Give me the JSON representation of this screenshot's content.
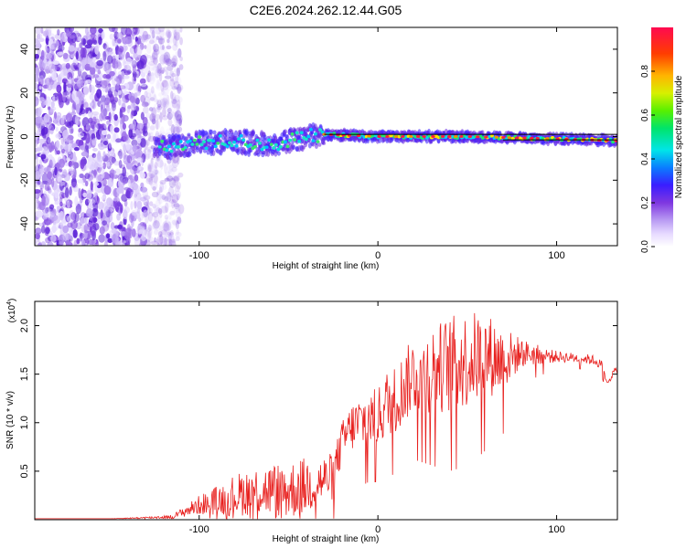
{
  "title": "C2E6.2024.262.12.44.G05",
  "colors": {
    "snr_line": "#e8211f",
    "frame": "#000000"
  },
  "colorbar": {
    "label": "Normalized spectral amplitude",
    "ticks": [
      "0.0",
      "0.2",
      "0.4",
      "0.6",
      "0.8"
    ],
    "tick_values": [
      0.0,
      0.2,
      0.4,
      0.6,
      0.8
    ],
    "range": [
      0.0,
      1.0
    ]
  },
  "chart_data": [
    {
      "type": "heatmap",
      "xlabel": "Height of straight line (km)",
      "ylabel": "Frequency (Hz)",
      "xlim": [
        -192,
        134
      ],
      "ylim": [
        -50,
        50
      ],
      "xticks": [
        -100,
        0,
        100
      ],
      "xtick_labels": [
        "-100",
        "0",
        "100"
      ],
      "yticks": [
        40,
        20,
        0,
        -20,
        -40
      ],
      "ytick_labels": [
        "40",
        "20",
        "0",
        "-20",
        "-40"
      ],
      "description_points": {
        "noise_region_end_km": -115,
        "ridge": [
          [
            -120,
            -5
          ],
          [
            -100,
            -3
          ],
          [
            -80,
            -2
          ],
          [
            -60,
            -4
          ],
          [
            -40,
            0
          ],
          [
            -30,
            1
          ],
          [
            0,
            0
          ],
          [
            50,
            0
          ],
          [
            100,
            -1
          ],
          [
            134,
            -2
          ]
        ]
      }
    },
    {
      "type": "line",
      "xlabel": "Height of straight line (km)",
      "ylabel": "SNR (10 * v/v)",
      "scale_label": "(x10",
      "scale_exp": "4",
      "scale_close": ")",
      "xlim": [
        -192,
        134
      ],
      "ylim": [
        0,
        2.25
      ],
      "xticks": [
        -100,
        0,
        100
      ],
      "xtick_labels": [
        "-100",
        "0",
        "100"
      ],
      "yticks": [
        0.5,
        1.0,
        1.5,
        2.0
      ],
      "ytick_labels": [
        "0.5",
        "1.0",
        "1.5",
        "2.0"
      ],
      "series": [
        {
          "name": "SNR",
          "x": [
            -192,
            -170,
            -150,
            -130,
            -115,
            -100,
            -90,
            -80,
            -70,
            -60,
            -50,
            -40,
            -32,
            -25,
            -20,
            -15,
            -10,
            -5,
            0,
            5,
            10,
            20,
            30,
            40,
            50,
            60,
            70,
            80,
            90,
            100,
            110,
            120,
            125,
            128,
            131,
            134
          ],
          "y": [
            0.01,
            0.01,
            0.01,
            0.02,
            0.03,
            0.15,
            0.2,
            0.25,
            0.3,
            0.3,
            0.3,
            0.35,
            0.4,
            0.45,
            0.8,
            0.95,
            1.0,
            1.05,
            1.05,
            1.2,
            1.25,
            1.5,
            1.55,
            1.6,
            1.65,
            1.7,
            1.65,
            1.72,
            1.7,
            1.68,
            1.67,
            1.65,
            1.6,
            1.4,
            1.5,
            1.55
          ],
          "spread": [
            0,
            0,
            0,
            0.01,
            0.02,
            0.1,
            0.15,
            0.22,
            0.25,
            0.28,
            0.3,
            0.3,
            0.25,
            0.25,
            0.22,
            0.25,
            0.3,
            0.3,
            0.3,
            0.35,
            0.35,
            0.4,
            0.45,
            0.5,
            0.5,
            0.45,
            0.35,
            0.15,
            0.1,
            0.06,
            0.05,
            0.05,
            0.05,
            0.04,
            0.04,
            0.04
          ]
        }
      ]
    }
  ]
}
